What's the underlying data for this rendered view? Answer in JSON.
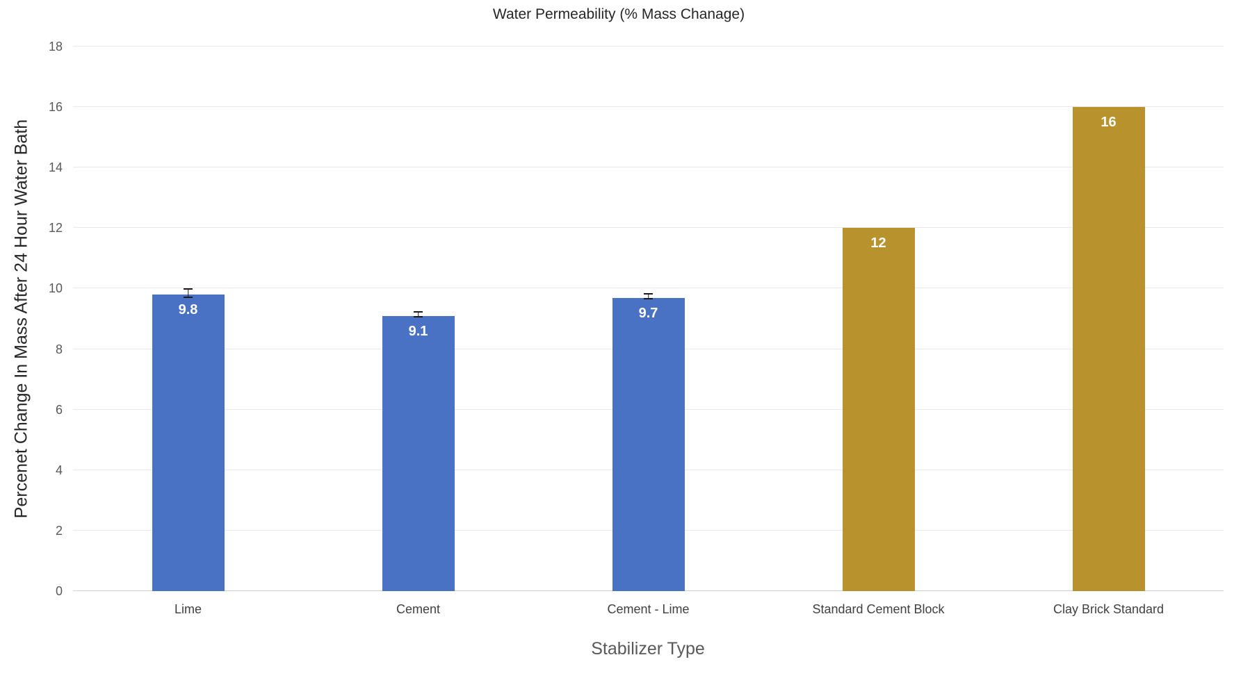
{
  "chart_data": {
    "type": "bar",
    "title": "Water Permeability (% Mass Chanage)",
    "xlabel": "Stabilizer Type",
    "ylabel": "Percenet Change In Mass After 24 Hour Water Bath",
    "categories": [
      "Lime",
      "Cement",
      "Cement - Lime",
      "Standard Cement Block",
      "Clay Brick Standard"
    ],
    "values": [
      9.8,
      9.1,
      9.7,
      12,
      16
    ],
    "value_labels": [
      "9.8",
      "9.1",
      "9.7",
      "12",
      "16"
    ],
    "bar_colors": [
      "#4A72C4",
      "#4A72C4",
      "#4A72C4",
      "#B7922D",
      "#B7922D"
    ],
    "errors": [
      0.12,
      0.05,
      0.05,
      0,
      0
    ],
    "ylim": [
      0,
      18
    ],
    "yticks": [
      0,
      2,
      4,
      6,
      8,
      10,
      12,
      14,
      16,
      18
    ],
    "grid": "horizontal",
    "legend": "none",
    "colors": {
      "blue_series": "#4A72C4",
      "gold_series": "#B7922D",
      "gridline": "#e9e9e9",
      "axis_line": "#d2d2d2",
      "tick_label": "#595959",
      "category_label": "#404040",
      "title": "#262626",
      "value_label": "#ffffff",
      "error_bar": "#1a1a1a"
    }
  }
}
